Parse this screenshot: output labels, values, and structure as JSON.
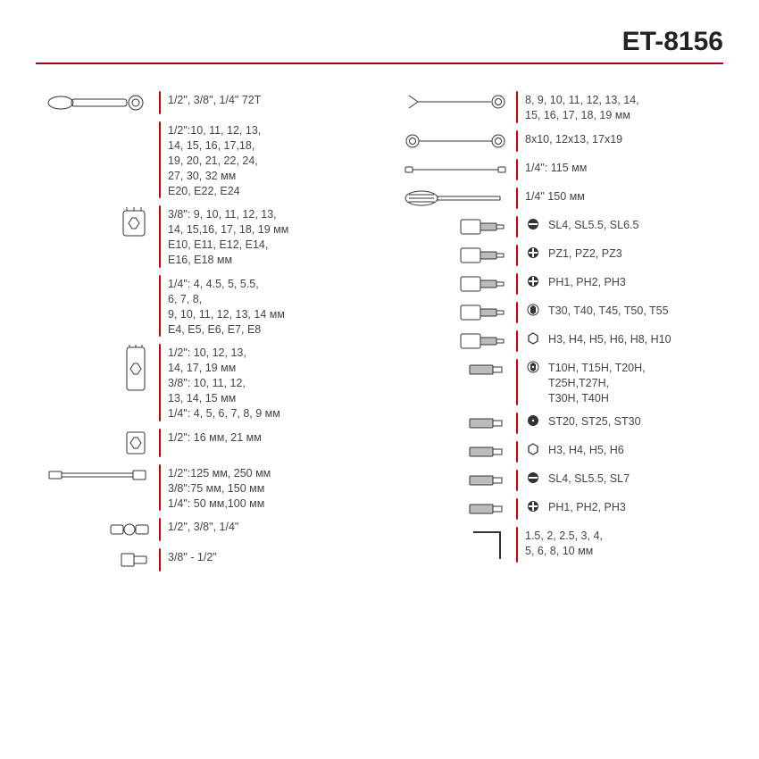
{
  "header": {
    "title": "ET-8156"
  },
  "colors": {
    "accent": "#c8050e",
    "header_rule": "#a8020a",
    "text": "#444444",
    "stroke": "#333333"
  },
  "left": [
    {
      "icon": "ratchet",
      "text": "1/2\", 3/8\", 1/4\" 72T"
    },
    {
      "icon": "",
      "text": "1/2\":10, 11, 12, 13,\n14, 15, 16, 17,18,\n19, 20, 21, 22, 24,\n27, 30, 32 мм\nE20, E22, E24"
    },
    {
      "icon": "socket-short",
      "text": "3/8\": 9, 10, 11, 12, 13,\n14, 15,16, 17, 18, 19 мм\nE10, E11, E12, E14,\nE16, E18 мм"
    },
    {
      "icon": "",
      "text": "1/4\": 4, 4.5, 5, 5.5,\n6, 7, 8,\n9, 10, 11, 12, 13, 14 мм\nE4, E5, E6, E7, E8"
    },
    {
      "icon": "socket-long",
      "text": "1/2\": 10, 12, 13,\n14, 17, 19 мм\n3/8\": 10, 11, 12,\n13, 14, 15 мм\n1/4\": 4, 5, 6, 7, 8, 9 мм"
    },
    {
      "icon": "spark-plug",
      "text": "1/2\": 16 мм, 21 мм"
    },
    {
      "icon": "extension",
      "text": "1/2\":125 мм, 250 мм\n3/8\":75 мм, 150 мм\n1/4\": 50 мм,100 мм"
    },
    {
      "icon": "universal-joint",
      "text": "1/2\", 3/8\", 1/4\""
    },
    {
      "icon": "adapter",
      "text": "3/8\" - 1/2\""
    }
  ],
  "right": [
    {
      "icon": "combination-wrench",
      "text": "8, 9, 10, 11, 12, 13, 14,\n15, 16, 17, 18, 19 мм"
    },
    {
      "icon": "double-ring-wrench",
      "text": "8x10, 12x13, 17x19"
    },
    {
      "icon": "breaker-bar",
      "text": "1/4\": 115 мм"
    },
    {
      "icon": "screwdriver-handle",
      "text": "1/4\" 150 мм"
    },
    {
      "icon": "bit-socket",
      "symbol": "slot",
      "text": "SL4, SL5.5, SL6.5"
    },
    {
      "icon": "bit-socket",
      "symbol": "phillips",
      "text": "PZ1, PZ2, PZ3"
    },
    {
      "icon": "bit-socket",
      "symbol": "phillips",
      "text": "PH1, PH2, PH3"
    },
    {
      "icon": "bit-socket",
      "symbol": "torx",
      "text": "T30, T40, T45, T50, T55"
    },
    {
      "icon": "bit-socket",
      "symbol": "hex",
      "text": "H3, H4, H5, H6, H8, H10"
    },
    {
      "icon": "bit",
      "symbol": "torx-dot",
      "text": "T10H, T15H, T20H,\nT25H,T27H,\nT30H, T40H"
    },
    {
      "icon": "bit",
      "symbol": "star-dot",
      "text": "ST20, ST25, ST30"
    },
    {
      "icon": "bit",
      "symbol": "hex",
      "text": "H3, H4, H5, H6"
    },
    {
      "icon": "bit",
      "symbol": "slot",
      "text": "SL4, SL5.5, SL7"
    },
    {
      "icon": "bit",
      "symbol": "phillips",
      "text": "PH1, PH2, PH3"
    },
    {
      "icon": "hex-key",
      "text": "1.5, 2, 2.5, 3, 4,\n5, 6, 8, 10 мм"
    }
  ]
}
